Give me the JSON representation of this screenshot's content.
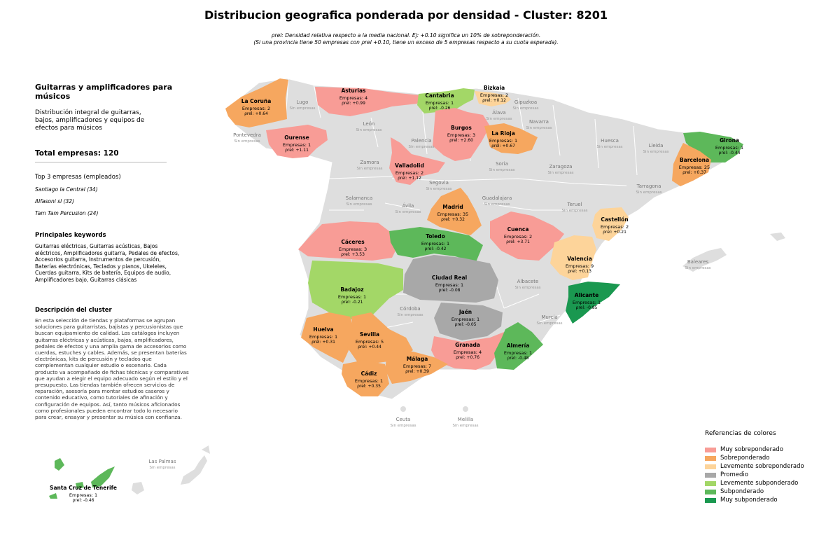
{
  "title": "Distribucion geografica ponderada por densidad - Cluster: 8201",
  "subtitle_line1": "ρrel: Densidad relativa respecto a la media nacional. Ej: +0.10 significa un 10% de sobreponderación.",
  "subtitle_line2": "(Si una provincia tiene 50 empresas con ρrel +0.10, tiene un exceso de 5 empresas respecto a su cuota esperada).",
  "sidebar": {
    "heading": "Guitarras y amplificadores para músicos",
    "description": "Distribución integral de guitarras, bajos, amplificadores y equipos de efectos para músicos",
    "total": "Total empresas: 120",
    "top_label": "Top 3 empresas (empleados)",
    "companies": [
      "Santiago la Central (34)",
      "Alfasoni sl (32)",
      "Tam Tam Percusion (24)"
    ],
    "keywords_heading": "Principales keywords",
    "keywords": "Guitarras eléctricas, Guitarras acústicas, Bajos eléctricos, Amplificadores guitarra, Pedales de efectos, Accesorios guitarra, Instrumentos de percusión, Baterías electrónicas, Teclados y pianos, Ukeleles, Cuerdas guitarra, Kits de batería, Equipos de audio, Amplificadores bajo, Guitarras clásicas",
    "cluster_heading": "Descripción del cluster",
    "cluster_text": "En esta selección de tiendas y plataformas se agrupan soluciones para guitarristas, bajistas y percusionistas que buscan equipamiento de calidad. Los catálogos incluyen guitarras eléctricas y acústicas, bajos, amplificadores, pedales de efectos y una amplia gama de accesorios como cuerdas, estuches y cables. Además, se presentan baterías electrónicas, kits de percusión y teclados que complementan cualquier estudio o escenario. Cada producto va acompañado de fichas técnicas y comparativas que ayudan a elegir el equipo adecuado según el estilo y el presupuesto. Las tiendas también ofrecen servicios de reparación, asesoría para montar estudios caseros y contenido educativo, como tutoriales de afinación y configuración de equipos. Así, tanto músicos aficionados como profesionales pueden encontrar todo lo necesario para crear, ensayar y presentar su música con confianza."
  },
  "colors": {
    "muy_sobre": "#f89c96",
    "sobre": "#f6a75f",
    "lev_sobre": "#fdd49a",
    "promedio": "#a8a8a8",
    "lev_sub": "#a3d767",
    "sub": "#5db85a",
    "muy_sub": "#1a9850",
    "sin": "#dedede"
  },
  "legend": {
    "title": "Referencias de colores",
    "items": [
      {
        "label": "Muy sobreponderado",
        "color": "#f89c96"
      },
      {
        "label": "Sobreponderado",
        "color": "#f6a75f"
      },
      {
        "label": "Levemente sobreponderado",
        "color": "#fdd49a"
      },
      {
        "label": "Promedio",
        "color": "#a8a8a8"
      },
      {
        "label": "Levemente subponderado",
        "color": "#a3d767"
      },
      {
        "label": "Subponderado",
        "color": "#5db85a"
      },
      {
        "label": "Muy subponderado",
        "color": "#1a9850"
      }
    ]
  },
  "labels": {
    "no_companies": "Sin empresas",
    "companies_prefix": "Empresas: ",
    "rho_prefix": "ρrel: "
  },
  "provinces_with_data": [
    {
      "name": "A Coruña",
      "label": "La Coruña",
      "empresas": 2,
      "rho": "+0.64",
      "category": "sobre"
    },
    {
      "name": "Asturias",
      "label": "Asturias",
      "empresas": 4,
      "rho": "+0.99",
      "category": "muy_sobre"
    },
    {
      "name": "Cantabria",
      "label": "Cantabria",
      "empresas": 1,
      "rho": "-0.26",
      "category": "lev_sub"
    },
    {
      "name": "Bizkaia",
      "label": "Bizkaia",
      "empresas": 2,
      "rho": "+0.12",
      "category": "lev_sobre"
    },
    {
      "name": "Ourense",
      "label": "Ourense",
      "empresas": 1,
      "rho": "+1.11",
      "category": "muy_sobre"
    },
    {
      "name": "Burgos",
      "label": "Burgos",
      "empresas": 3,
      "rho": "+2.60",
      "category": "muy_sobre"
    },
    {
      "name": "La Rioja",
      "label": "La Rioja",
      "empresas": 1,
      "rho": "+0.67",
      "category": "sobre"
    },
    {
      "name": "Valladolid",
      "label": "Valladolid",
      "empresas": 2,
      "rho": "+1.12",
      "category": "muy_sobre"
    },
    {
      "name": "Girona",
      "label": "Girona",
      "empresas": 1,
      "rho": "-0.44",
      "category": "sub"
    },
    {
      "name": "Barcelona",
      "label": "Barcelona",
      "empresas": 25,
      "rho": "+0.37",
      "category": "sobre"
    },
    {
      "name": "Madrid",
      "label": "Madrid",
      "empresas": 35,
      "rho": "+0.32",
      "category": "sobre"
    },
    {
      "name": "Castellón",
      "label": "Castellón",
      "empresas": 2,
      "rho": "+0.21",
      "category": "lev_sobre"
    },
    {
      "name": "Cáceres",
      "label": "Cáceres",
      "empresas": 3,
      "rho": "+3.53",
      "category": "muy_sobre"
    },
    {
      "name": "Toledo",
      "label": "Toledo",
      "empresas": 1,
      "rho": "-0.42",
      "category": "sub"
    },
    {
      "name": "Cuenca",
      "label": "Cuenca",
      "empresas": 2,
      "rho": "+3.71",
      "category": "muy_sobre"
    },
    {
      "name": "Valencia",
      "label": "Valencia",
      "empresas": 9,
      "rho": "+0.13",
      "category": "lev_sobre"
    },
    {
      "name": "Ciudad Real",
      "label": "Ciudad Real",
      "empresas": 1,
      "rho": "-0.08",
      "category": "promedio"
    },
    {
      "name": "Badajoz",
      "label": "Badajoz",
      "empresas": 1,
      "rho": "-0.21",
      "category": "lev_sub"
    },
    {
      "name": "Alicante",
      "label": "Alicante",
      "empresas": 1,
      "rho": "-0.85",
      "category": "muy_sub"
    },
    {
      "name": "Jaén",
      "label": "Jaén",
      "empresas": 1,
      "rho": "-0.05",
      "category": "promedio"
    },
    {
      "name": "Huelva",
      "label": "Huelva",
      "empresas": 1,
      "rho": "+0.31",
      "category": "sobre"
    },
    {
      "name": "Sevilla",
      "label": "Sevilla",
      "empresas": 5,
      "rho": "+0.44",
      "category": "sobre"
    },
    {
      "name": "Granada",
      "label": "Granada",
      "empresas": 4,
      "rho": "+0.76",
      "category": "muy_sobre"
    },
    {
      "name": "Almería",
      "label": "Almería",
      "empresas": 1,
      "rho": "-0.48",
      "category": "sub"
    },
    {
      "name": "Málaga",
      "label": "Málaga",
      "empresas": 7,
      "rho": "+0.39",
      "category": "sobre"
    },
    {
      "name": "Cádiz",
      "label": "Cádiz",
      "empresas": 1,
      "rho": "+0.35",
      "category": "sobre"
    },
    {
      "name": "Santa Cruz de Tenerife",
      "label": "Santa Cruz de Tenerife",
      "empresas": 1,
      "rho": "-0.46",
      "category": "sub"
    }
  ],
  "provinces_without_data": [
    "Lugo",
    "Pontevedra",
    "León",
    "Gipuzkoa",
    "Álava",
    "Navarra",
    "Palencia",
    "Huesca",
    "Lleida",
    "Zamora",
    "Soria",
    "Zaragoza",
    "Tarragona",
    "Salamanca",
    "Segovia",
    "Ávila",
    "Guadalajara",
    "Teruel",
    "Baleares",
    "Albacete",
    "Córdoba",
    "Murcia",
    "Ceuta",
    "Melilla",
    "Las Palmas"
  ]
}
